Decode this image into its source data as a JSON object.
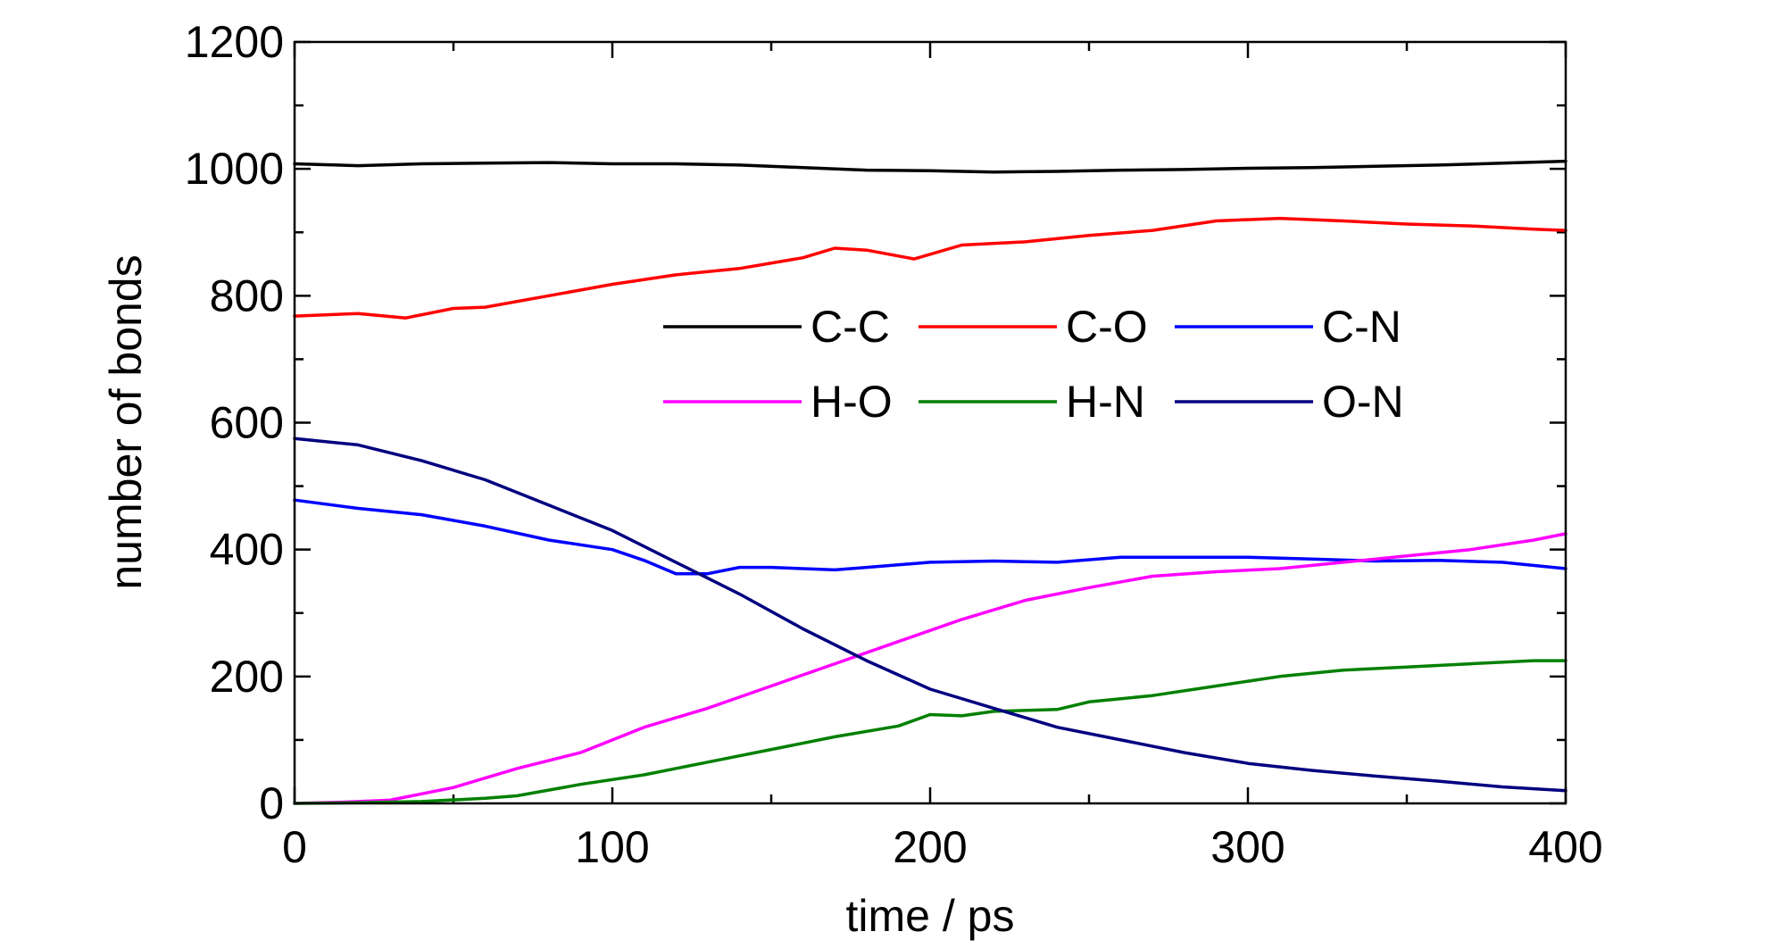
{
  "chart_data": {
    "type": "line",
    "title": "",
    "xlabel": "time / ps",
    "ylabel": "number of bonds",
    "xlim": [
      0,
      400
    ],
    "ylim": [
      0,
      1200
    ],
    "xticks": [
      "0",
      "100",
      "200",
      "300",
      "400"
    ],
    "yticks": [
      "0",
      "200",
      "400",
      "600",
      "800",
      "1000",
      "1200"
    ],
    "grid": false,
    "legend_position": "center-right, two rows of three",
    "series": [
      {
        "name": "C-C",
        "color": "#000000",
        "x": [
          0,
          20,
          40,
          60,
          80,
          100,
          120,
          140,
          160,
          180,
          200,
          220,
          240,
          260,
          280,
          300,
          320,
          340,
          360,
          380,
          400
        ],
        "y": [
          1008,
          1005,
          1008,
          1009,
          1010,
          1008,
          1008,
          1006,
          1002,
          998,
          997,
          995,
          996,
          998,
          999,
          1001,
          1002,
          1004,
          1006,
          1009,
          1012
        ]
      },
      {
        "name": "C-O",
        "color": "#ff0000",
        "x": [
          0,
          20,
          35,
          50,
          60,
          80,
          100,
          120,
          140,
          160,
          170,
          180,
          195,
          210,
          230,
          250,
          270,
          290,
          310,
          330,
          350,
          370,
          390,
          400
        ],
        "y": [
          768,
          772,
          765,
          780,
          782,
          800,
          818,
          833,
          843,
          860,
          875,
          872,
          858,
          880,
          885,
          895,
          903,
          918,
          922,
          918,
          913,
          910,
          905,
          903
        ]
      },
      {
        "name": "C-N",
        "color": "#0000ff",
        "x": [
          0,
          20,
          40,
          60,
          80,
          100,
          110,
          120,
          130,
          140,
          150,
          170,
          180,
          200,
          220,
          240,
          260,
          280,
          300,
          320,
          340,
          360,
          380,
          400
        ],
        "y": [
          478,
          465,
          455,
          437,
          415,
          400,
          383,
          362,
          362,
          372,
          372,
          368,
          372,
          380,
          382,
          380,
          388,
          388,
          388,
          385,
          382,
          383,
          380,
          370
        ]
      },
      {
        "name": "H-O",
        "color": "#ff00ff",
        "x": [
          0,
          15,
          30,
          50,
          70,
          90,
          110,
          130,
          150,
          170,
          190,
          210,
          230,
          250,
          270,
          290,
          310,
          330,
          350,
          370,
          390,
          400
        ],
        "y": [
          0,
          2,
          5,
          25,
          55,
          80,
          120,
          150,
          185,
          220,
          255,
          290,
          320,
          340,
          358,
          365,
          370,
          380,
          390,
          400,
          415,
          425
        ]
      },
      {
        "name": "H-N",
        "color": "#008000",
        "x": [
          0,
          20,
          40,
          60,
          70,
          90,
          110,
          130,
          150,
          170,
          190,
          200,
          210,
          220,
          240,
          250,
          270,
          290,
          310,
          330,
          350,
          370,
          390,
          400
        ],
        "y": [
          0,
          1,
          3,
          8,
          12,
          30,
          45,
          65,
          85,
          105,
          122,
          140,
          138,
          145,
          148,
          160,
          170,
          185,
          200,
          210,
          215,
          220,
          225,
          225
        ]
      },
      {
        "name": "O-N",
        "color": "#000080",
        "x": [
          0,
          20,
          40,
          60,
          80,
          100,
          120,
          140,
          160,
          180,
          200,
          220,
          240,
          260,
          280,
          300,
          320,
          340,
          360,
          380,
          400
        ],
        "y": [
          575,
          565,
          540,
          510,
          470,
          430,
          380,
          330,
          275,
          225,
          180,
          150,
          120,
          100,
          80,
          63,
          52,
          43,
          35,
          26,
          20
        ]
      }
    ]
  }
}
